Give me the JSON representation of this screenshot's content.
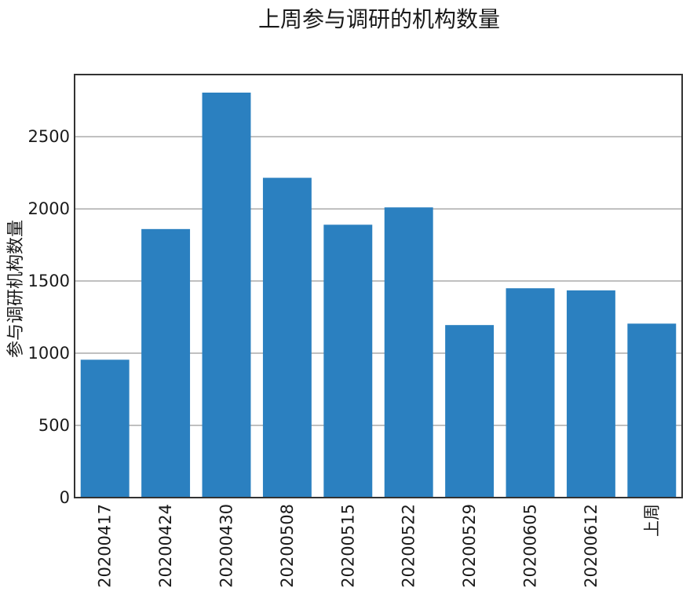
{
  "chart_data": {
    "type": "bar",
    "title": "上周参与调研的机构数量",
    "xlabel": "",
    "ylabel": "参与调研机构数量",
    "categories": [
      "20200417",
      "20200424",
      "20200430",
      "20200508",
      "20200515",
      "20200522",
      "20200529",
      "20200605",
      "20200612",
      "上周"
    ],
    "values": [
      955,
      1860,
      2805,
      2215,
      1890,
      2010,
      1195,
      1450,
      1435,
      1205
    ],
    "ylim": [
      0,
      2930
    ],
    "yticks": [
      0,
      500,
      1000,
      1500,
      2000,
      2500
    ],
    "grid": "horizontal",
    "bar_color": "#2b80c0"
  }
}
